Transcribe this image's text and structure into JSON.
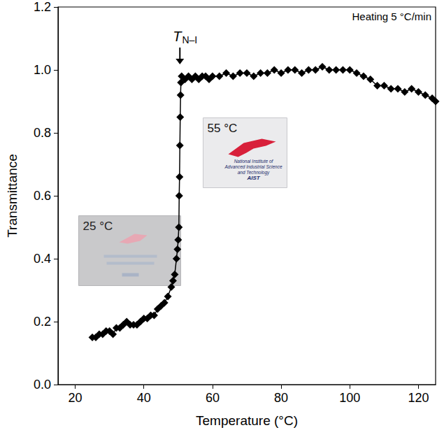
{
  "chart_data": {
    "type": "line",
    "x_label": "Temperature (°C)",
    "y_label": "Transmittance",
    "marker": "diamond",
    "line_style": "solid",
    "color": "#000000",
    "grid": false,
    "x": [
      25,
      26,
      27,
      28,
      29,
      30,
      31,
      32,
      33,
      34,
      35,
      36,
      37,
      38,
      39,
      40,
      41,
      42,
      43,
      44,
      45,
      46,
      47,
      48,
      48.5,
      49,
      49.5,
      49.8,
      50,
      50.2,
      50.3,
      50.4,
      50.5,
      50.6,
      50.7,
      50.8,
      51,
      52,
      53,
      54,
      55,
      56,
      57,
      58,
      59,
      60,
      62,
      64,
      66,
      68,
      70,
      72,
      74,
      76,
      78,
      80,
      82,
      84,
      86,
      88,
      90,
      92,
      94,
      96,
      98,
      100,
      102,
      104,
      106,
      108,
      110,
      112,
      114,
      116,
      118,
      120,
      122,
      124,
      125
    ],
    "values": [
      0.15,
      0.15,
      0.16,
      0.16,
      0.17,
      0.17,
      0.16,
      0.18,
      0.18,
      0.19,
      0.2,
      0.19,
      0.19,
      0.19,
      0.2,
      0.21,
      0.21,
      0.22,
      0.22,
      0.24,
      0.25,
      0.26,
      0.28,
      0.31,
      0.33,
      0.35,
      0.4,
      0.43,
      0.46,
      0.5,
      0.6,
      0.66,
      0.76,
      0.85,
      0.92,
      0.96,
      0.98,
      0.97,
      0.98,
      0.97,
      0.98,
      0.97,
      0.98,
      0.98,
      0.97,
      0.98,
      0.98,
      0.99,
      0.98,
      0.99,
      0.99,
      0.98,
      0.99,
      0.99,
      1.0,
      0.99,
      1.0,
      1.0,
      0.99,
      1.0,
      1.0,
      1.01,
      1.0,
      1.0,
      1.0,
      1.0,
      0.99,
      0.98,
      0.97,
      0.95,
      0.95,
      0.94,
      0.94,
      0.93,
      0.94,
      0.93,
      0.92,
      0.91,
      0.9
    ],
    "xlim": [
      15,
      125
    ],
    "xticks": [
      20,
      40,
      60,
      80,
      100,
      120
    ],
    "ylim": [
      0,
      1.2
    ],
    "yticks": [
      {
        "value": 0,
        "label": "0.0"
      },
      0.2,
      0.4,
      0.6,
      0.8,
      {
        "value": 1,
        "label": "1.0"
      },
      1.2
    ],
    "annotations": [
      {
        "text": "T",
        "subscript": "N–I",
        "x": 50.5,
        "y": 1.0
      },
      {
        "text": "Heating 5 °C/min"
      }
    ],
    "insets": [
      {
        "label": "25 °C"
      },
      {
        "label": "55 °C",
        "text": [
          "National Institute of",
          "Advanced Industrial Science",
          "and Technology",
          "AIST"
        ]
      }
    ]
  }
}
